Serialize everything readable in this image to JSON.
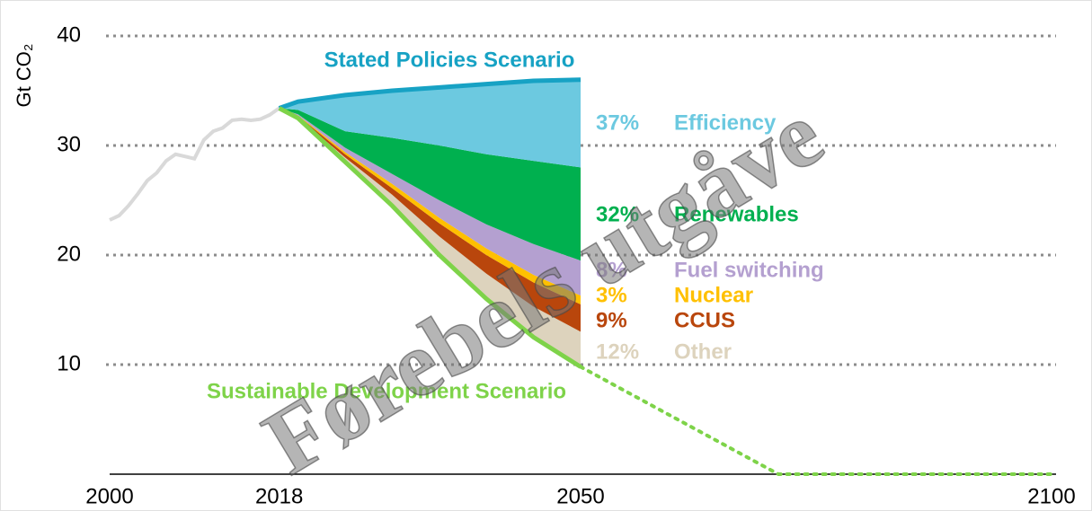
{
  "chart_data": {
    "type": "area",
    "y_label": "Gt CO₂",
    "xlim": [
      2000,
      2100
    ],
    "ylim": [
      0,
      40
    ],
    "xticks": [
      2000,
      2018,
      2050,
      2100
    ],
    "yticks": [
      10,
      20,
      30,
      40
    ],
    "grid": true,
    "historical": {
      "color": "#d9d9d9",
      "x": [
        2000,
        2001,
        2002,
        2003,
        2004,
        2005,
        2006,
        2007,
        2008,
        2009,
        2010,
        2011,
        2012,
        2013,
        2014,
        2015,
        2016,
        2017,
        2018
      ],
      "values": [
        23.2,
        23.6,
        24.5,
        25.6,
        26.8,
        27.5,
        28.6,
        29.2,
        29.0,
        28.8,
        30.5,
        31.3,
        31.6,
        32.3,
        32.4,
        32.3,
        32.4,
        32.8,
        33.4
      ]
    },
    "scenarios": [
      {
        "name": "Stated Policies Scenario",
        "color": "#17a2c4",
        "x": [
          2018,
          2020,
          2025,
          2030,
          2035,
          2040,
          2045,
          2050
        ],
        "values": [
          33.4,
          34.0,
          34.6,
          35.0,
          35.3,
          35.6,
          35.9,
          36.0
        ]
      },
      {
        "name": "Sustainable Development Scenario",
        "color": "#7ed349",
        "x": [
          2018,
          2020,
          2025,
          2030,
          2035,
          2040,
          2045,
          2050
        ],
        "values": [
          33.4,
          32.5,
          28.5,
          24.5,
          20.0,
          16.0,
          12.5,
          9.8
        ]
      }
    ],
    "sds_extension": {
      "color": "#7ed349",
      "style": "dotted",
      "x": [
        2050,
        2071,
        2100
      ],
      "values": [
        9.8,
        0,
        0
      ]
    },
    "stack": {
      "x": [
        2018,
        2020,
        2025,
        2030,
        2035,
        2040,
        2045,
        2050
      ],
      "series": [
        {
          "name": "Other",
          "color": "#ddd3bd",
          "share": 12,
          "share_label": "12%",
          "values": [
            0,
            0.1,
            0.4,
            1.0,
            1.7,
            2.3,
            2.8,
            3.2
          ]
        },
        {
          "name": "CCUS",
          "color": "#b9460c",
          "share": 9,
          "share_label": "9%",
          "values": [
            0,
            0.1,
            0.3,
            0.6,
            1.2,
            1.7,
            2.2,
            2.5
          ]
        },
        {
          "name": "Nuclear",
          "color": "#ffc000",
          "share": 3,
          "share_label": "3%",
          "values": [
            0,
            0.05,
            0.2,
            0.4,
            0.5,
            0.6,
            0.7,
            0.8
          ]
        },
        {
          "name": "Fuel switching",
          "color": "#b4a0d0",
          "share": 8,
          "share_label": "8%",
          "values": [
            0,
            0.1,
            0.4,
            0.9,
            1.6,
            2.2,
            2.8,
            3.2
          ]
        },
        {
          "name": "Renewables",
          "color": "#00b04f",
          "share": 32,
          "share_label": "32%",
          "values": [
            0,
            0.4,
            1.5,
            3.3,
            5.0,
            6.4,
            7.6,
            8.5
          ]
        },
        {
          "name": "Efficiency",
          "color": "#6cc9e0",
          "share": 37,
          "share_label": "37%",
          "values": [
            0,
            0.75,
            3.3,
            4.3,
            5.3,
            6.4,
            7.3,
            8.0
          ]
        }
      ]
    },
    "watermark": "Førebels utgåve"
  }
}
